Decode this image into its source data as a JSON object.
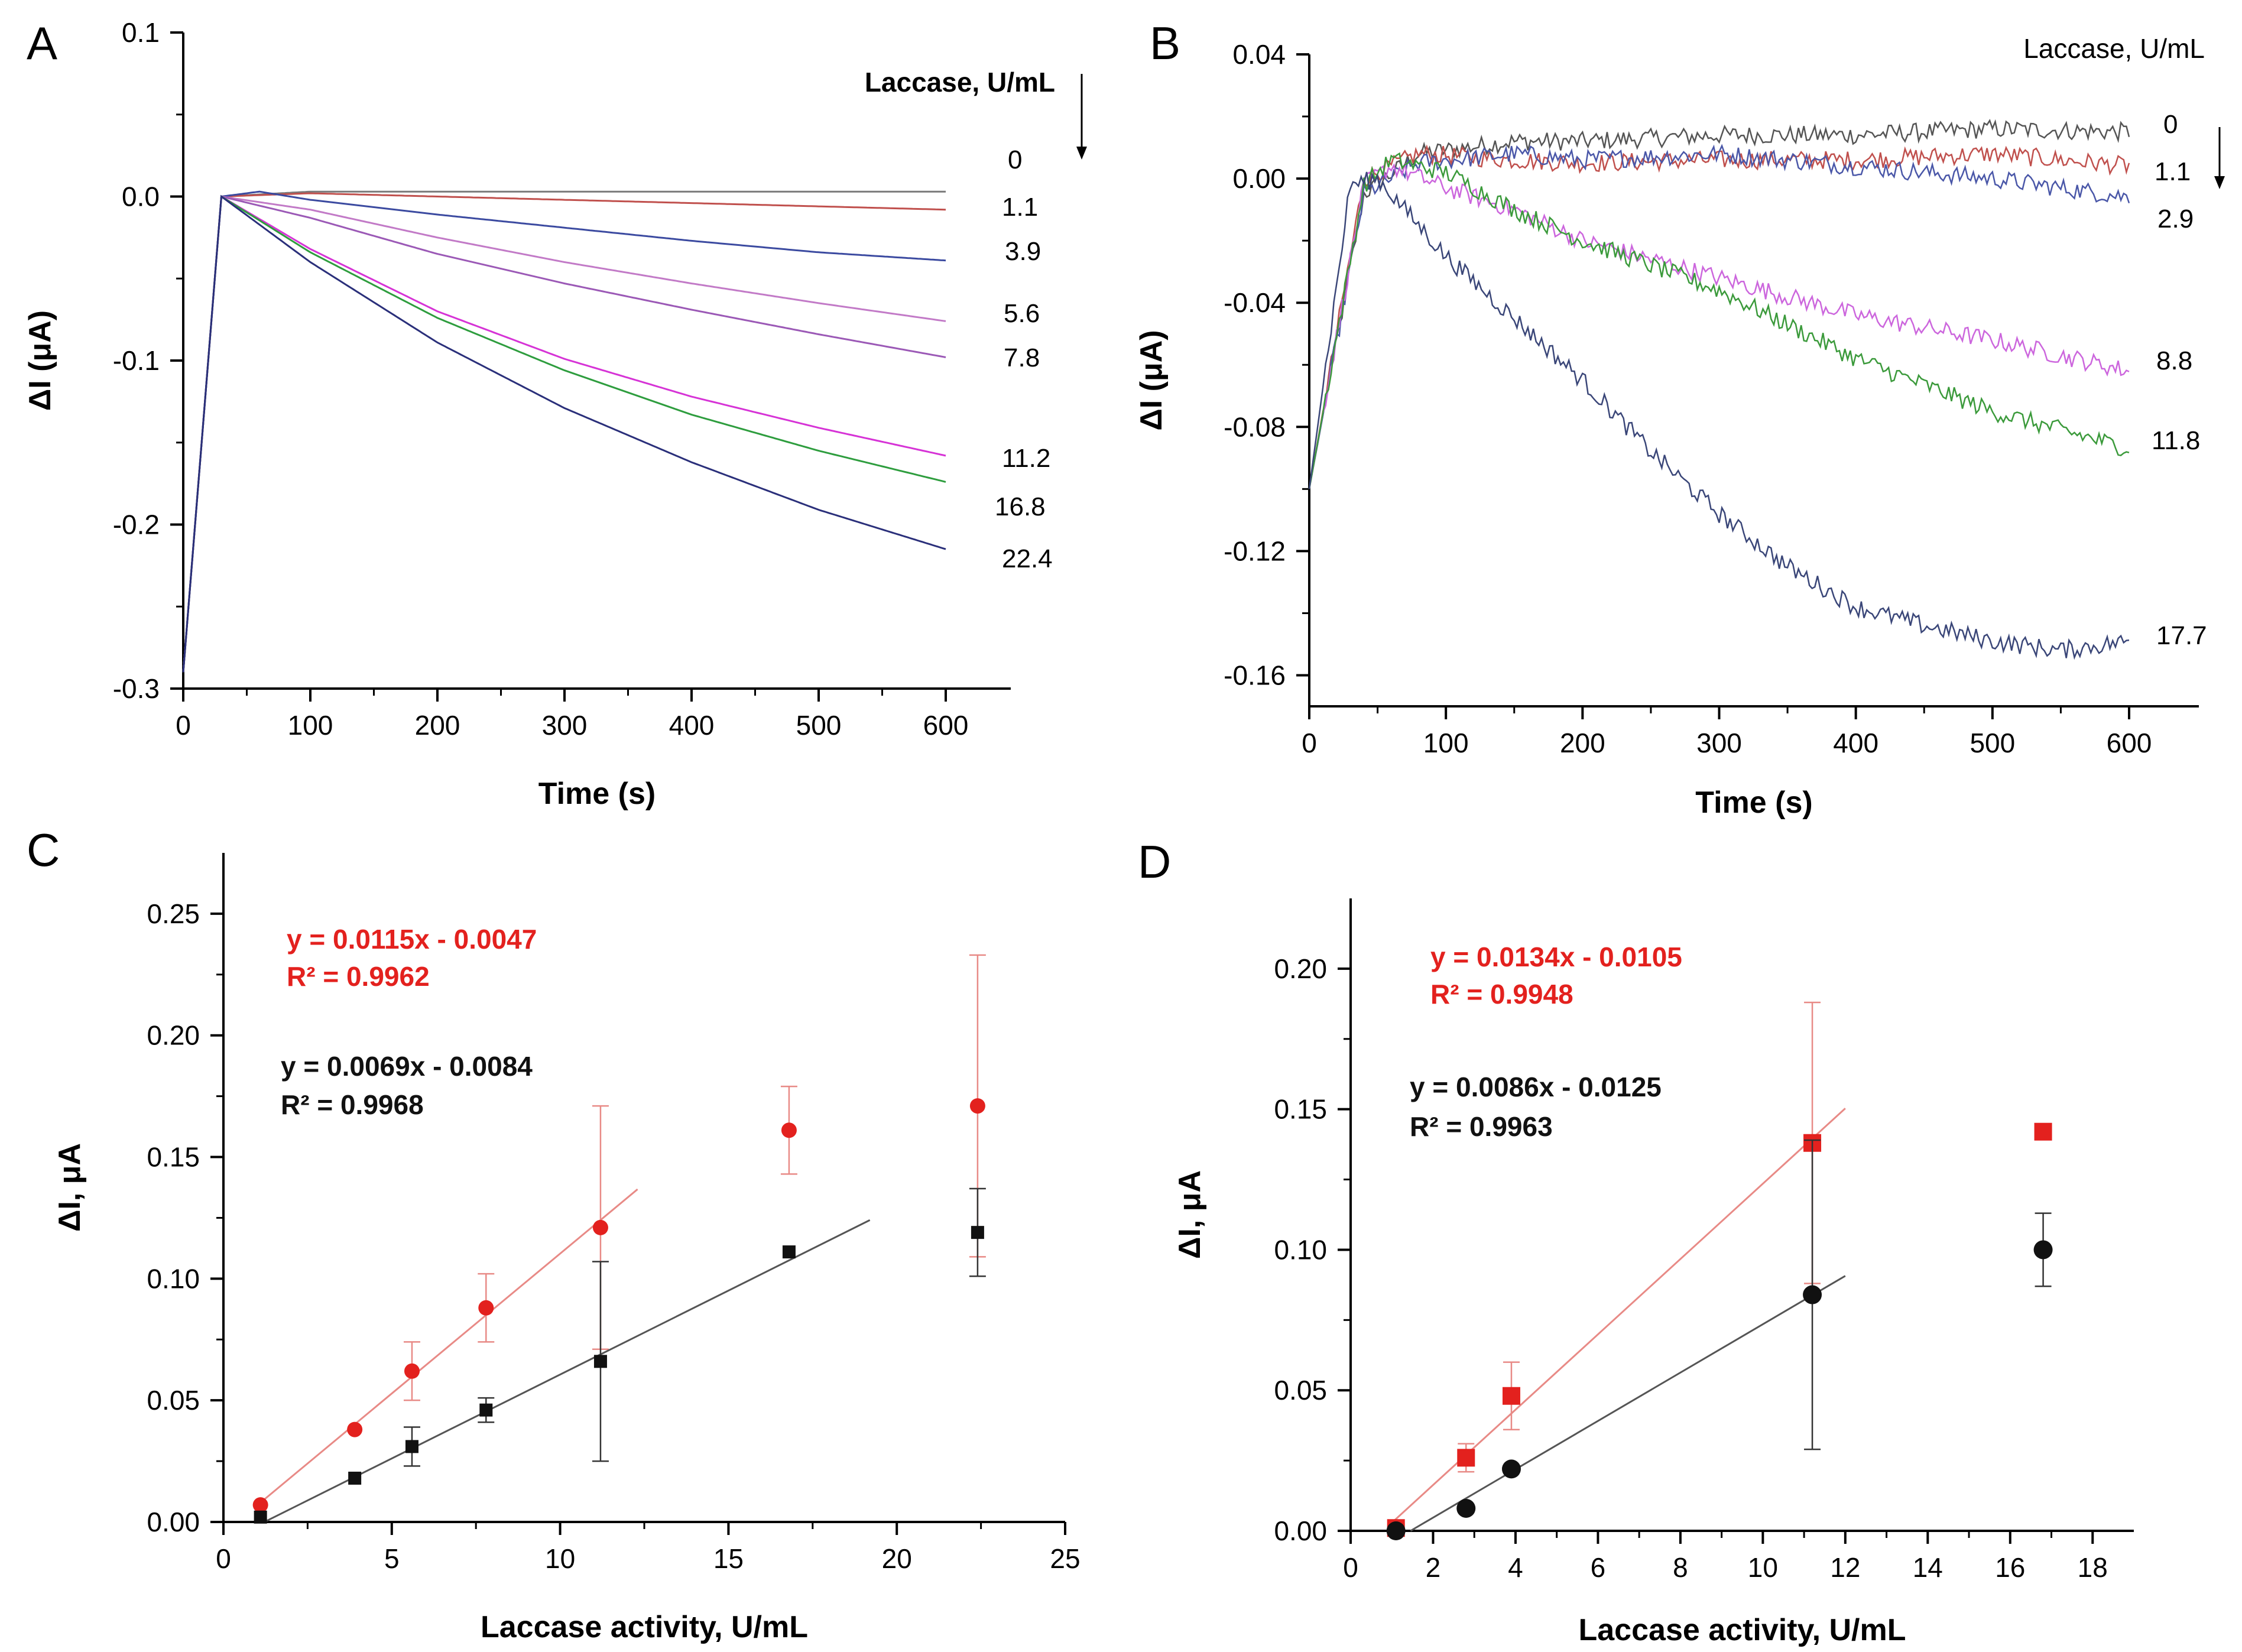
{
  "figure_panels": [
    "A",
    "B",
    "C",
    "D"
  ],
  "chart_data": [
    {
      "panel": "A",
      "type": "line",
      "xlabel": "Time (s)",
      "ylabel": "ΔI (μA)",
      "xlim": [
        0,
        650
      ],
      "ylim": [
        -0.3,
        0.1
      ],
      "xticks": [
        0,
        100,
        200,
        300,
        400,
        500,
        600
      ],
      "yticks": [
        0.1,
        0.0,
        -0.1,
        -0.2,
        -0.3
      ],
      "ytick_labels": [
        "0.1",
        "0.0",
        "-0.1",
        "-0.2",
        "-0.3"
      ],
      "legend_title": "Laccase, U/mL",
      "series": [
        {
          "name": "0",
          "color": "#7a7a7a",
          "x": [
            0,
            30,
            100,
            200,
            300,
            400,
            500,
            600
          ],
          "y": [
            -0.29,
            0.0,
            0.003,
            0.003,
            0.003,
            0.003,
            0.003,
            0.003
          ]
        },
        {
          "name": "1.1",
          "color": "#c0504d",
          "x": [
            0,
            30,
            100,
            200,
            300,
            400,
            500,
            600
          ],
          "y": [
            -0.29,
            0.0,
            0.002,
            0.0,
            -0.002,
            -0.004,
            -0.006,
            -0.008
          ]
        },
        {
          "name": "3.9",
          "color": "#3b4aa0",
          "x": [
            0,
            30,
            60,
            100,
            200,
            300,
            400,
            500,
            600
          ],
          "y": [
            -0.29,
            0.0,
            0.003,
            -0.002,
            -0.011,
            -0.019,
            -0.027,
            -0.034,
            -0.039
          ]
        },
        {
          "name": "5.6",
          "color": "#c27ac7",
          "x": [
            0,
            30,
            100,
            200,
            300,
            400,
            500,
            600
          ],
          "y": [
            -0.29,
            0.0,
            -0.008,
            -0.025,
            -0.04,
            -0.053,
            -0.065,
            -0.076
          ]
        },
        {
          "name": "7.8",
          "color": "#9b59b6",
          "x": [
            0,
            30,
            100,
            200,
            300,
            400,
            500,
            600
          ],
          "y": [
            -0.29,
            0.0,
            -0.013,
            -0.035,
            -0.053,
            -0.069,
            -0.084,
            -0.098
          ]
        },
        {
          "name": "11.2",
          "color": "#d633d6",
          "x": [
            0,
            30,
            100,
            200,
            300,
            400,
            500,
            600
          ],
          "y": [
            -0.29,
            0.0,
            -0.032,
            -0.07,
            -0.099,
            -0.122,
            -0.141,
            -0.158
          ]
        },
        {
          "name": "16.8",
          "color": "#2e9d3e",
          "x": [
            0,
            30,
            100,
            200,
            300,
            400,
            500,
            600
          ],
          "y": [
            -0.29,
            0.0,
            -0.034,
            -0.074,
            -0.106,
            -0.133,
            -0.155,
            -0.174
          ]
        },
        {
          "name": "22.4",
          "color": "#2a2f7a",
          "x": [
            0,
            30,
            100,
            200,
            300,
            400,
            500,
            600
          ],
          "y": [
            -0.29,
            0.0,
            -0.04,
            -0.089,
            -0.129,
            -0.162,
            -0.191,
            -0.215
          ]
        }
      ]
    },
    {
      "panel": "B",
      "type": "line",
      "xlabel": "Time (s)",
      "ylabel": "ΔI (μA)",
      "xlim": [
        0,
        650
      ],
      "ylim": [
        -0.17,
        0.04
      ],
      "xticks": [
        0,
        100,
        200,
        300,
        400,
        500,
        600
      ],
      "yticks": [
        0.04,
        0.0,
        -0.04,
        -0.08,
        -0.12,
        -0.16
      ],
      "ytick_labels": [
        "0.04",
        "0.00",
        "-0.04",
        "-0.08",
        "-0.12",
        "-0.16"
      ],
      "legend_title": "Laccase, U/mL",
      "series": [
        {
          "name": "0",
          "color": "#555555",
          "x": [
            0,
            40,
            80,
            150,
            200,
            300,
            400,
            500,
            600
          ],
          "y": [
            -0.1,
            -0.005,
            0.008,
            0.012,
            0.012,
            0.014,
            0.014,
            0.016,
            0.015
          ]
        },
        {
          "name": "1.1",
          "color": "#c0504d",
          "x": [
            0,
            40,
            80,
            150,
            200,
            300,
            400,
            500,
            600
          ],
          "y": [
            -0.1,
            0.0,
            0.008,
            0.006,
            0.005,
            0.006,
            0.006,
            0.008,
            0.004
          ]
        },
        {
          "name": "2.9",
          "color": "#4a57a8",
          "x": [
            0,
            40,
            80,
            150,
            200,
            300,
            400,
            500,
            600
          ],
          "y": [
            -0.1,
            -0.005,
            0.005,
            0.008,
            0.006,
            0.008,
            0.004,
            0.0,
            -0.006
          ]
        },
        {
          "name": "8.8",
          "color": "#cc66dd",
          "x": [
            0,
            40,
            60,
            100,
            150,
            200,
            300,
            400,
            500,
            600
          ],
          "y": [
            -0.1,
            -0.002,
            0.004,
            -0.003,
            -0.01,
            -0.02,
            -0.032,
            -0.044,
            -0.052,
            -0.062
          ]
        },
        {
          "name": "11.8",
          "color": "#3b9a3b",
          "x": [
            0,
            40,
            60,
            100,
            150,
            200,
            300,
            400,
            500,
            600
          ],
          "y": [
            -0.1,
            -0.002,
            0.006,
            0.002,
            -0.01,
            -0.02,
            -0.036,
            -0.058,
            -0.075,
            -0.087
          ]
        },
        {
          "name": "17.7",
          "color": "#3a4678",
          "x": [
            0,
            30,
            50,
            100,
            150,
            200,
            250,
            300,
            350,
            400,
            450,
            500,
            550,
            600
          ],
          "y": [
            -0.1,
            -0.002,
            0.0,
            -0.025,
            -0.045,
            -0.065,
            -0.088,
            -0.108,
            -0.125,
            -0.138,
            -0.144,
            -0.149,
            -0.152,
            -0.149
          ]
        }
      ]
    },
    {
      "panel": "C",
      "type": "scatter",
      "xlabel": "Laccase activity, U/mL",
      "ylabel": "ΔI, μA",
      "xlim": [
        0,
        25
      ],
      "ylim": [
        0,
        0.275
      ],
      "xticks": [
        0,
        5,
        10,
        15,
        20,
        25
      ],
      "yticks": [
        0.0,
        0.05,
        0.1,
        0.15,
        0.2,
        0.25
      ],
      "ytick_labels": [
        "0.00",
        "0.05",
        "0.10",
        "0.15",
        "0.20",
        "0.25"
      ],
      "series": [
        {
          "name": "red",
          "color": "#e3211e",
          "marker": "circle",
          "x": [
            1.1,
            3.9,
            5.6,
            7.8,
            11.2,
            16.8,
            22.4
          ],
          "y": [
            0.007,
            0.038,
            0.062,
            0.088,
            0.121,
            0.161,
            0.171
          ],
          "err": [
            0.0,
            0.0,
            0.012,
            0.014,
            0.05,
            0.018,
            0.062
          ],
          "fit_range": [
            1.1,
            12.3
          ],
          "equation": "y = 0.0115x - 0.0047",
          "r2": "R² = 0.9962"
        },
        {
          "name": "black",
          "color": "#111111",
          "marker": "square",
          "x": [
            1.1,
            3.9,
            5.6,
            7.8,
            11.2,
            16.8,
            22.4
          ],
          "y": [
            0.002,
            0.018,
            0.031,
            0.046,
            0.066,
            0.111,
            0.119
          ],
          "err": [
            0.0,
            0.0,
            0.008,
            0.005,
            0.041,
            0.0,
            0.018
          ],
          "fit_range": [
            1.1,
            19.2
          ],
          "equation": "y = 0.0069x - 0.0084",
          "r2": "R² = 0.9968"
        }
      ]
    },
    {
      "panel": "D",
      "type": "scatter",
      "xlabel": "Laccase activity, U/mL",
      "ylabel": "ΔI, μA",
      "xlim": [
        0,
        19
      ],
      "ylim": [
        0,
        0.225
      ],
      "xticks": [
        0,
        2,
        4,
        6,
        8,
        10,
        12,
        14,
        16,
        18
      ],
      "yticks": [
        0.0,
        0.05,
        0.1,
        0.15,
        0.2
      ],
      "ytick_labels": [
        "0.00",
        "0.05",
        "0.10",
        "0.15",
        "0.20"
      ],
      "series": [
        {
          "name": "red",
          "color": "#e3211e",
          "marker": "square",
          "x": [
            1.1,
            2.8,
            3.9,
            11.2,
            16.8
          ],
          "y": [
            0.001,
            0.026,
            0.048,
            0.138,
            0.142
          ],
          "err": [
            0.0,
            0.005,
            0.012,
            0.05,
            0.0
          ],
          "fit_range": [
            1.0,
            12.0
          ],
          "equation": "y = 0.0134x - 0.0105",
          "r2": "R² = 0.9948"
        },
        {
          "name": "black",
          "color": "#111111",
          "marker": "circle",
          "x": [
            1.1,
            2.8,
            3.9,
            11.2,
            16.8
          ],
          "y": [
            0.0,
            0.008,
            0.022,
            0.084,
            0.1
          ],
          "err": [
            0.0,
            0.0,
            0.0,
            0.055,
            0.013
          ],
          "fit_range": [
            1.0,
            12.0
          ],
          "equation": "y = 0.0086x - 0.0125",
          "r2": "R² = 0.9963"
        }
      ]
    }
  ]
}
